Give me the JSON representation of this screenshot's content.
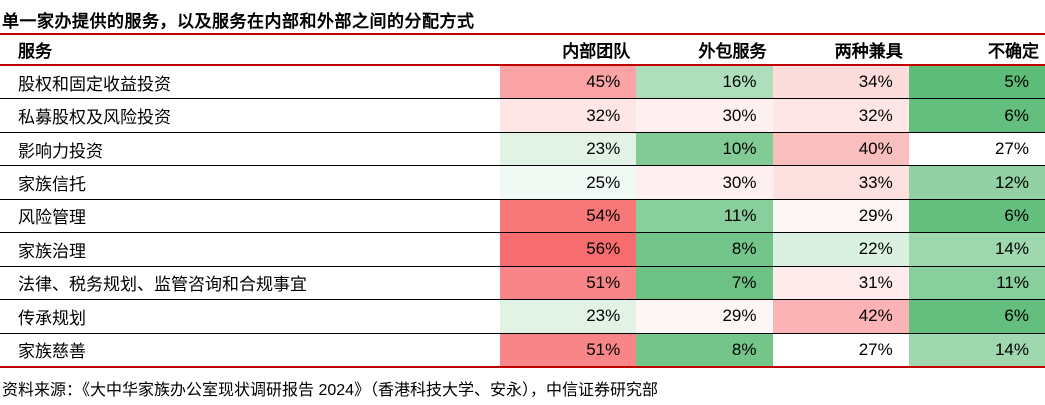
{
  "title": "单一家办提供的服务，以及服务在内部和外部之间的分配方式",
  "source_note": "资料来源：《大中华家族办公室现状调研报告 2024》（香港科技大学、安永），中信证券研究部",
  "colors": {
    "rule_line": "#c00000",
    "row_separator": "#000000",
    "text": "#000000",
    "background": "#ffffff",
    "heat_green_strong": "#5dbc78",
    "heat_white_mid": "#ffffff",
    "heat_red_strong": "#f76d6f"
  },
  "chart_data": {
    "type": "heatmap",
    "title": "单一家办提供的服务，以及服务在内部和外部之间的分配方式",
    "columns": [
      "服务",
      "内部团队",
      "外包服务",
      "两种兼具",
      "不确定"
    ],
    "value_suffix": "%",
    "color_scale": {
      "min_value": 5,
      "mid_value": 27,
      "max_value": 56,
      "min_color": "#5dbc78",
      "mid_color": "#ffffff",
      "max_color": "#f76d6f",
      "note": "green=low, white=mid, red=high"
    },
    "rows": [
      {
        "label": "股权和固定收益投资",
        "values": [
          45,
          16,
          34,
          5
        ]
      },
      {
        "label": "私募股权及风险投资",
        "values": [
          32,
          30,
          32,
          6
        ]
      },
      {
        "label": "影响力投资",
        "values": [
          23,
          10,
          40,
          27
        ]
      },
      {
        "label": "家族信托",
        "values": [
          25,
          30,
          33,
          12
        ]
      },
      {
        "label": "风险管理",
        "values": [
          54,
          11,
          29,
          6
        ]
      },
      {
        "label": "家族治理",
        "values": [
          56,
          8,
          22,
          14
        ]
      },
      {
        "label": "法律、税务规划、监管咨询和合规事宜",
        "values": [
          51,
          7,
          31,
          11
        ]
      },
      {
        "label": "传承规划",
        "values": [
          23,
          29,
          42,
          6
        ]
      },
      {
        "label": "家族慈善",
        "values": [
          51,
          8,
          27,
          14
        ]
      }
    ]
  }
}
